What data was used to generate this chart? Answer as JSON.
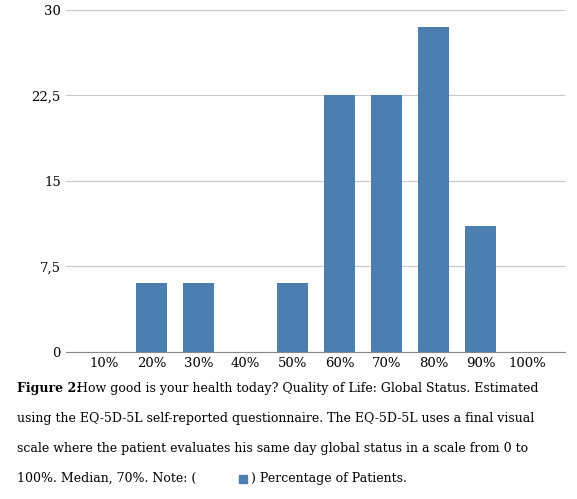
{
  "categories": [
    "10%",
    "20%",
    "30%",
    "40%",
    "50%",
    "60%",
    "70%",
    "80%",
    "90%",
    "100%"
  ],
  "values": [
    0,
    6.0,
    6.0,
    0,
    6.0,
    22.5,
    22.5,
    28.5,
    11.0,
    0
  ],
  "bar_color": "#4d7eb0",
  "ylim": [
    0,
    30
  ],
  "yticks": [
    0,
    7.5,
    15,
    22.5,
    30
  ],
  "ytick_labels": [
    "0",
    "7,5",
    "15",
    "22,5",
    "30"
  ],
  "background_color": "#ffffff",
  "grid_color": "#c8c8c8",
  "bar_width": 0.65,
  "caption_bold": "Figure 2:",
  "caption_line1": " How good is your health today? Quality of Life: Global Status. Estimated",
  "caption_line2": "using the EQ-5D-5L self-reported questionnaire. The EQ-5D-5L uses a final visual",
  "caption_line3": "scale where the patient evaluates his same day global status in a scale from 0 to",
  "caption_line4": "100%. Median, 70%. Note: (",
  "caption_line4b": ") Percentage of Patients.",
  "note_color": "#4d7eb0",
  "caption_fontsize": 9.0,
  "tick_fontsize": 9.5
}
